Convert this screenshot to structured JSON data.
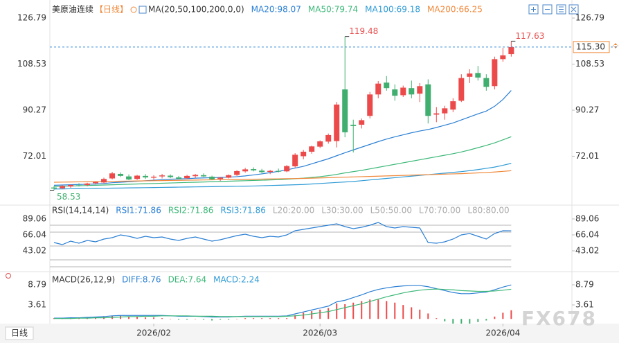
{
  "header": {
    "symbol": "美原油连续",
    "period": "【日线】",
    "indicator": "MA(20,50,100,200,0,0)"
  },
  "bottom_tab": "日线",
  "watermark": "FX678",
  "chart_data": [
    {
      "type": "candlestick",
      "xlim": [
        -0.5,
        62.3
      ],
      "xticks": [
        {
          "value": 12,
          "label": "2026/02"
        },
        {
          "value": 32,
          "label": "2026/03"
        },
        {
          "value": 54,
          "label": "2026/04"
        }
      ],
      "ylim": [
        52.9,
        133.4
      ],
      "yticks": [
        72.01,
        90.27,
        108.53,
        126.79
      ],
      "up_color": "#ec4a4a",
      "down_color": "#3fae6e",
      "candles": [
        [
          59.6,
          60.2,
          58.53,
          59.2
        ],
        [
          59.3,
          60.5,
          59.0,
          60.2
        ],
        [
          60.0,
          60.8,
          59.5,
          60.6
        ],
        [
          60.5,
          61.3,
          60.0,
          60.3
        ],
        [
          60.6,
          61.5,
          60.1,
          61.2
        ],
        [
          61.3,
          62.0,
          60.8,
          61.8
        ],
        [
          61.6,
          63.5,
          61.2,
          63.0
        ],
        [
          63.2,
          65.8,
          62.8,
          65.2
        ],
        [
          65.0,
          65.6,
          63.8,
          64.2
        ],
        [
          64.0,
          64.8,
          62.5,
          62.8
        ],
        [
          63.0,
          64.6,
          62.6,
          64.3
        ],
        [
          64.2,
          64.9,
          63.0,
          63.6
        ],
        [
          63.5,
          64.5,
          62.7,
          63.9
        ],
        [
          64.0,
          65.0,
          63.2,
          64.4
        ],
        [
          64.3,
          64.8,
          63.3,
          63.7
        ],
        [
          63.6,
          64.2,
          62.8,
          63.1
        ],
        [
          63.3,
          64.6,
          63.0,
          64.2
        ],
        [
          64.1,
          65.0,
          63.4,
          64.6
        ],
        [
          64.5,
          65.2,
          63.8,
          64.0
        ],
        [
          63.9,
          64.3,
          62.6,
          62.9
        ],
        [
          63.0,
          63.8,
          62.2,
          63.5
        ],
        [
          63.5,
          64.8,
          63.2,
          64.5
        ],
        [
          64.6,
          66.5,
          64.2,
          66.1
        ],
        [
          66.0,
          67.4,
          65.5,
          66.8
        ],
        [
          66.9,
          67.6,
          66.0,
          66.4
        ],
        [
          66.3,
          67.0,
          65.2,
          65.7
        ],
        [
          65.8,
          66.6,
          64.9,
          66.2
        ],
        [
          66.2,
          67.1,
          65.6,
          65.9
        ],
        [
          66.0,
          68.5,
          65.7,
          68.1
        ],
        [
          68.0,
          73.2,
          67.5,
          72.6
        ],
        [
          72.0,
          74.5,
          70.8,
          73.8
        ],
        [
          73.8,
          76.2,
          73.0,
          75.9
        ],
        [
          75.8,
          78.3,
          75.2,
          77.9
        ],
        [
          77.8,
          81.0,
          77.0,
          80.4
        ],
        [
          78.0,
          93.5,
          75.5,
          92.5
        ],
        [
          98.5,
          119.48,
          79.5,
          81.5
        ],
        [
          84.5,
          86.5,
          73.5,
          84.0
        ],
        [
          84.5,
          87.0,
          83.0,
          86.3
        ],
        [
          88.0,
          97.5,
          87.0,
          96.5
        ],
        [
          96.5,
          101.8,
          95.0,
          100.8
        ],
        [
          101.2,
          103.8,
          98.0,
          99.0
        ],
        [
          98.5,
          100.5,
          94.0,
          96.0
        ],
        [
          96.2,
          100.0,
          95.5,
          99.2
        ],
        [
          99.0,
          102.0,
          95.0,
          96.5
        ],
        [
          96.8,
          101.0,
          93.5,
          99.8
        ],
        [
          100.5,
          102.5,
          85.0,
          88.0
        ],
        [
          88.5,
          91.5,
          85.5,
          89.0
        ],
        [
          89.0,
          92.0,
          86.5,
          91.0
        ],
        [
          90.5,
          95.0,
          89.5,
          93.8
        ],
        [
          94.0,
          104.5,
          93.5,
          103.0
        ],
        [
          103.5,
          106.5,
          101.0,
          104.8
        ],
        [
          105.0,
          107.8,
          102.0,
          103.2
        ],
        [
          103.0,
          104.5,
          98.0,
          99.5
        ],
        [
          99.8,
          111.5,
          98.5,
          110.5
        ],
        [
          110.5,
          115.0,
          109.5,
          112.0
        ],
        [
          112.5,
          117.63,
          111.5,
          115.3
        ]
      ],
      "last_price": {
        "value": 115.3,
        "label": "115.30"
      },
      "series": [
        {
          "name": "MA20:98.07",
          "color": "#2a7fd4",
          "values": [
            60.5,
            60.6,
            60.7,
            60.8,
            60.9,
            61.0,
            61.2,
            61.5,
            61.7,
            61.9,
            62.1,
            62.3,
            62.5,
            62.7,
            62.9,
            63.0,
            63.1,
            63.3,
            63.4,
            63.5,
            63.6,
            63.7,
            63.9,
            64.2,
            64.6,
            65.0,
            65.5,
            66.0,
            66.6,
            67.3,
            68.0,
            69.0,
            70.0,
            71.0,
            72.2,
            73.4,
            74.5,
            75.6,
            76.7,
            77.8,
            78.8,
            79.7,
            80.5,
            81.3,
            82.0,
            82.6,
            83.4,
            84.3,
            85.2,
            86.4,
            87.6,
            88.8,
            89.9,
            91.8,
            94.5,
            98.07
          ]
        },
        {
          "name": "MA50:79.74",
          "color": "#3cb878",
          "values": [
            60.0,
            60.1,
            60.2,
            60.3,
            60.4,
            60.5,
            60.6,
            60.7,
            60.8,
            60.9,
            61.0,
            61.1,
            61.2,
            61.3,
            61.4,
            61.5,
            61.6,
            61.7,
            61.8,
            61.9,
            62.0,
            62.1,
            62.2,
            62.3,
            62.4,
            62.5,
            62.6,
            62.7,
            62.9,
            63.1,
            63.3,
            63.6,
            63.9,
            64.3,
            64.8,
            65.4,
            65.9,
            66.4,
            67.0,
            67.6,
            68.2,
            68.8,
            69.4,
            70.0,
            70.6,
            71.2,
            71.8,
            72.4,
            73.0,
            73.7,
            74.5,
            75.4,
            76.3,
            77.3,
            78.5,
            79.74
          ]
        },
        {
          "name": "MA100:69.18",
          "color": "#2f9bd6",
          "values": [
            59.0,
            59.05,
            59.1,
            59.15,
            59.2,
            59.25,
            59.3,
            59.35,
            59.4,
            59.45,
            59.5,
            59.55,
            59.6,
            59.65,
            59.7,
            59.75,
            59.8,
            59.85,
            59.9,
            59.95,
            60.0,
            60.05,
            60.1,
            60.15,
            60.2,
            60.3,
            60.4,
            60.5,
            60.6,
            60.7,
            60.8,
            61.0,
            61.2,
            61.4,
            61.6,
            61.8,
            62.0,
            62.3,
            62.6,
            62.9,
            63.2,
            63.5,
            63.8,
            64.1,
            64.4,
            64.7,
            65.0,
            65.3,
            65.6,
            65.9,
            66.3,
            66.7,
            67.2,
            67.7,
            68.4,
            69.18
          ]
        },
        {
          "name": "MA200:66.25",
          "color": "#f0883a",
          "values": [
            61.7,
            61.75,
            61.8,
            61.85,
            61.9,
            61.95,
            62.0,
            62.05,
            62.1,
            62.15,
            62.2,
            62.25,
            62.3,
            62.35,
            62.4,
            62.45,
            62.5,
            62.55,
            62.6,
            62.65,
            62.7,
            62.75,
            62.8,
            62.85,
            62.9,
            62.95,
            63.0,
            63.05,
            63.1,
            63.15,
            63.2,
            63.3,
            63.4,
            63.5,
            63.6,
            63.7,
            63.8,
            63.9,
            64.0,
            64.1,
            64.2,
            64.3,
            64.4,
            64.5,
            64.6,
            64.7,
            64.8,
            64.9,
            65.0,
            65.1,
            65.25,
            65.4,
            65.55,
            65.75,
            66.0,
            66.25
          ]
        }
      ]
    },
    {
      "type": "line",
      "title": "RSI(14,14,14)",
      "xlim": [
        -0.5,
        62.3
      ],
      "ylim": [
        13,
        108
      ],
      "yticks": [
        43.02,
        66.04,
        89.06
      ],
      "series": [
        {
          "name": "RSI1:71.86",
          "color": "#2a7fd4",
          "values": [
            55,
            52,
            57,
            54,
            58,
            56,
            60,
            62,
            66,
            64,
            61,
            64,
            62,
            63,
            60,
            58,
            61,
            63,
            60,
            57,
            59,
            62,
            65,
            67,
            64,
            62,
            64,
            63,
            66,
            72,
            74,
            76,
            78,
            80,
            82,
            78,
            75,
            77,
            80,
            84,
            78,
            76,
            78,
            77,
            76,
            55,
            54,
            56,
            60,
            66,
            68,
            64,
            60,
            68,
            72,
            71.86
          ]
        }
      ],
      "extra_legend": [
        {
          "name": "RSI2:71.86",
          "color": "#3cb878"
        },
        {
          "name": "RSI3:71.86",
          "color": "#2f9bd6"
        }
      ],
      "levels": [
        {
          "value": 20,
          "label": "L20:20.00"
        },
        {
          "value": 30,
          "label": "L30:30.00"
        },
        {
          "value": 50,
          "label": "L50:50.00"
        },
        {
          "value": 70,
          "label": "L70:70.00"
        },
        {
          "value": 80,
          "label": "L80:80.00"
        }
      ],
      "level_color": "#b5b5b5"
    },
    {
      "type": "macd",
      "title": "MACD(26,12,9)",
      "xlim": [
        -0.5,
        62.3
      ],
      "ylim": [
        -1.2,
        12.0
      ],
      "yticks": [
        3.61,
        8.79
      ],
      "series": [
        {
          "name": "DIFF:8.76",
          "color": "#2a7fd4",
          "values": [
            0.2,
            0.2,
            0.3,
            0.3,
            0.4,
            0.5,
            0.6,
            0.8,
            0.9,
            0.9,
            0.9,
            0.9,
            0.9,
            0.9,
            0.8,
            0.7,
            0.7,
            0.7,
            0.6,
            0.5,
            0.5,
            0.5,
            0.6,
            0.7,
            0.7,
            0.7,
            0.7,
            0.7,
            0.8,
            1.3,
            1.8,
            2.3,
            2.8,
            3.3,
            4.4,
            4.8,
            5.5,
            6.2,
            7.0,
            7.6,
            8.0,
            8.3,
            8.5,
            8.6,
            8.6,
            8.3,
            7.8,
            7.3,
            6.8,
            6.5,
            6.5,
            6.7,
            6.9,
            7.5,
            8.2,
            8.76
          ]
        },
        {
          "name": "DEA:7.64",
          "color": "#3cb878",
          "values": [
            0.1,
            0.1,
            0.1,
            0.2,
            0.2,
            0.3,
            0.3,
            0.4,
            0.5,
            0.6,
            0.6,
            0.7,
            0.7,
            0.8,
            0.8,
            0.8,
            0.8,
            0.7,
            0.7,
            0.7,
            0.6,
            0.6,
            0.6,
            0.6,
            0.6,
            0.6,
            0.6,
            0.6,
            0.7,
            0.8,
            1.0,
            1.3,
            1.6,
            1.9,
            2.4,
            2.9,
            3.4,
            3.9,
            4.5,
            5.1,
            5.7,
            6.2,
            6.7,
            7.1,
            7.4,
            7.6,
            7.7,
            7.6,
            7.5,
            7.3,
            7.2,
            7.1,
            7.1,
            7.2,
            7.4,
            7.64
          ]
        }
      ],
      "histogram": {
        "name": "MACD:2.24",
        "color": "#2f9bd6",
        "up_color": "#ec4a4a",
        "down_color": "#3fae6e",
        "values": [
          0.2,
          0.2,
          0.4,
          0.2,
          0.4,
          0.4,
          0.6,
          0.8,
          0.8,
          0.6,
          0.6,
          0.4,
          0.4,
          0.2,
          0,
          -0.2,
          -0.2,
          0,
          -0.2,
          -0.4,
          -0.2,
          -0.2,
          0,
          0.2,
          0.2,
          0.2,
          0.2,
          0.2,
          0.2,
          1.0,
          1.6,
          2.0,
          2.4,
          2.8,
          4.0,
          3.8,
          4.2,
          4.6,
          5.0,
          5.0,
          4.6,
          4.2,
          3.6,
          3.0,
          2.4,
          1.4,
          0.2,
          -0.6,
          -1.4,
          -1.6,
          -1.4,
          -0.8,
          -0.4,
          0.6,
          1.6,
          2.24
        ]
      }
    }
  ]
}
